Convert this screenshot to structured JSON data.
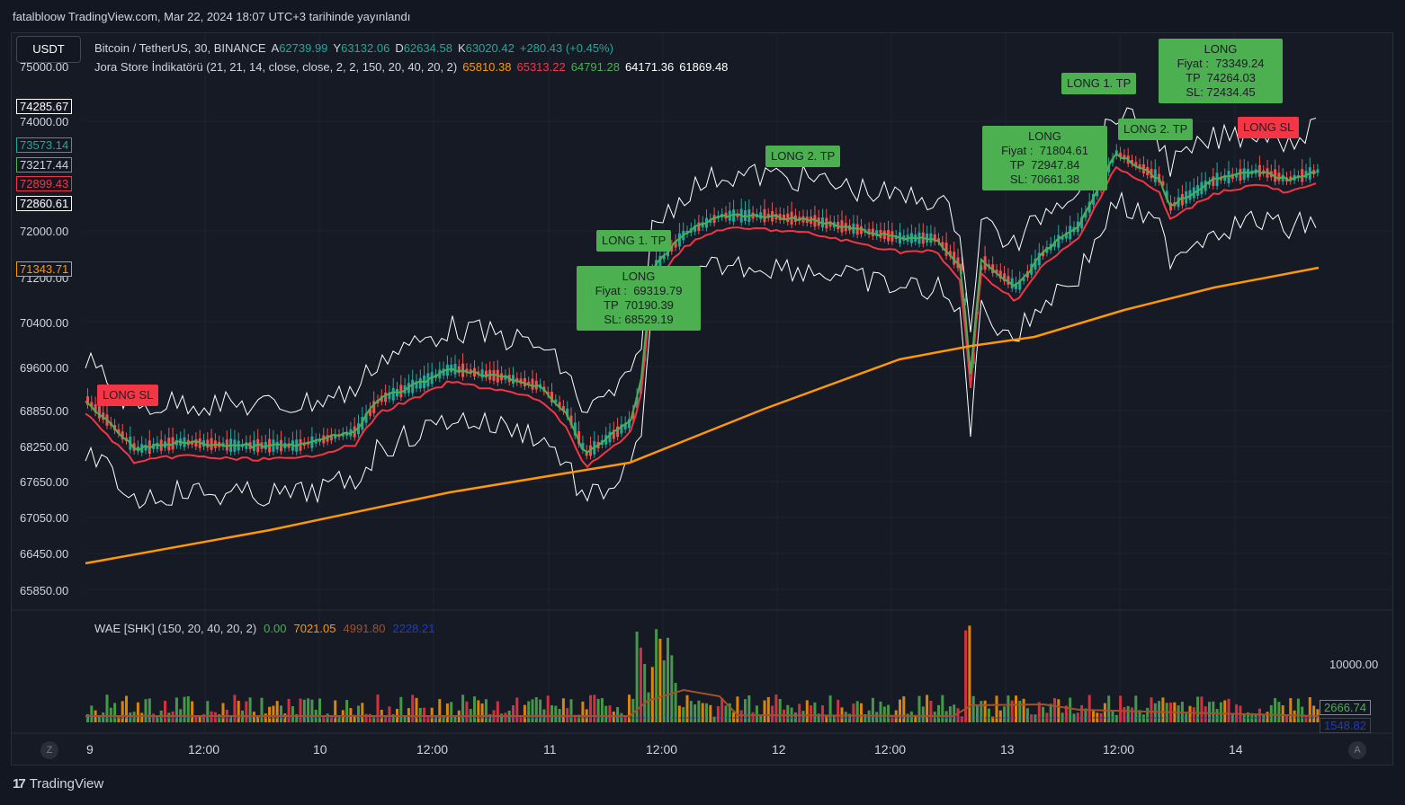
{
  "header": {
    "published": "fatalbloow TradingView.com, Mar 22, 2024 18:07 UTC+3 tarihinde yayınlandı"
  },
  "currency_button": "USDT",
  "symbol_legend": {
    "name": "Bitcoin / TetherUS, 30, BINANCE",
    "o_label": "A",
    "o": "62739.99",
    "h_label": "Y",
    "h": "63132.06",
    "l_label": "D",
    "l": "62634.58",
    "c_label": "K",
    "c": "63020.42",
    "change": "+280.43 (+0.45%)"
  },
  "indicator_legend": {
    "name": "Jora Store İndikatörü (21, 21, 14, close, close, 2, 2, 150, 20, 40, 20, 2)",
    "v1": "65810.38",
    "v2": "65313.22",
    "v3": "64791.28",
    "v4": "64171.36",
    "v5": "61869.48"
  },
  "price_axis": {
    "ticks": [
      "75000.00",
      "74000.00",
      "72000.00",
      "71200.00",
      "70400.00",
      "69600.00",
      "68850.00",
      "68250.00",
      "67650.00",
      "67050.00",
      "66450.00",
      "65850.00"
    ],
    "boxes": [
      {
        "value": "74285.67",
        "color": "#ffffff"
      },
      {
        "value": "73573.14",
        "color": "#26a69a"
      },
      {
        "value": "73217.44",
        "color": "#4caf50"
      },
      {
        "value": "72899.43",
        "color": "#f23645"
      },
      {
        "value": "72860.61",
        "color": "#ffffff"
      },
      {
        "value": "71343.71",
        "color": "#ff9800"
      }
    ]
  },
  "time_axis": [
    "9",
    "12:00",
    "10",
    "12:00",
    "11",
    "12:00",
    "12",
    "12:00",
    "13",
    "12:00",
    "14"
  ],
  "annotations": [
    {
      "text": "LONG SL",
      "color": "red"
    },
    {
      "text": "LONG 1. TP",
      "color": "green"
    },
    {
      "text": "LONG\nFiyat :  69319.79\nTP  70190.39\nSL: 68529.19",
      "color": "green"
    },
    {
      "text": "LONG 2. TP",
      "color": "green"
    },
    {
      "text": "LONG\nFiyat :  71804.61\nTP  72947.84\nSL: 70661.38",
      "color": "green"
    },
    {
      "text": "LONG 1. TP",
      "color": "green"
    },
    {
      "text": "LONG\nFiyat :  73349.24\nTP  74264.03\nSL: 72434.45",
      "color": "green"
    },
    {
      "text": "LONG 2. TP",
      "color": "green"
    },
    {
      "text": "LONG SL",
      "color": "red"
    }
  ],
  "sub_indicator": {
    "name": "WAE [SHK] (150, 20, 40, 20, 2)",
    "v1": "0.00",
    "v2": "7021.05",
    "v3": "4991.80",
    "v4": "2228.21",
    "axis_tick": "10000.00",
    "box1": "2666.74",
    "box2": "1548.82"
  },
  "buttons": {
    "left": "Z",
    "right": "A"
  },
  "footer": {
    "brand": "TradingView",
    "logo": "17"
  },
  "colors": {
    "up": "#26a69a",
    "down": "#ef5350",
    "ema": "#ff9800",
    "green_line": "#4caf50",
    "red_line": "#f23645",
    "bands": "#ffffff"
  }
}
